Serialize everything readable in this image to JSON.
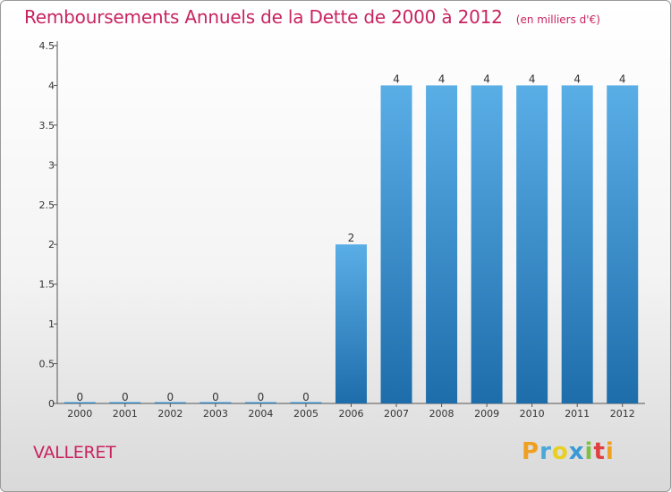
{
  "chart_data": {
    "type": "bar",
    "title": "Remboursements Annuels de la Dette de 2000 à 2012",
    "unit_note": "(en milliers d'€)",
    "categories": [
      "2000",
      "2001",
      "2002",
      "2003",
      "2004",
      "2005",
      "2006",
      "2007",
      "2008",
      "2009",
      "2010",
      "2011",
      "2012"
    ],
    "values": [
      0,
      0,
      0,
      0,
      0,
      0,
      2,
      4,
      4,
      4,
      4,
      4,
      4
    ],
    "value_labels": [
      "0",
      "0",
      "0",
      "0",
      "0",
      "0",
      "2",
      "4",
      "4",
      "4",
      "4",
      "4",
      "4"
    ],
    "ylim": [
      0,
      4.5
    ],
    "y_ticks": [
      0,
      0.5,
      1,
      1.5,
      2,
      2.5,
      3,
      3.5,
      4,
      4.5
    ],
    "y_tick_labels": [
      "0",
      "0.5",
      "1",
      "1.5",
      "2",
      "2.5",
      "3",
      "3.5",
      "4",
      "4.5"
    ],
    "grid": false,
    "bar_color_top": "#5aaee6",
    "bar_color_bottom": "#1e6dab"
  },
  "commune": "VALLERET",
  "logo": {
    "letters": [
      "P",
      "r",
      "o",
      "x",
      "i",
      "t",
      "i"
    ],
    "colors": [
      "#f0a020",
      "#4aa8d8",
      "#e8d020",
      "#3a9ad6",
      "#80c040",
      "#e04040",
      "#f0a020"
    ]
  }
}
